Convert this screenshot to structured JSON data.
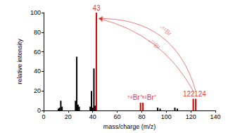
{
  "chart_data": {
    "type": "bar",
    "x_label": "mass/charge (m/z)",
    "y_label": "relative intensity",
    "x": [
      12,
      13,
      14,
      15,
      26,
      27,
      28,
      29,
      38,
      39,
      40,
      41,
      42,
      43,
      79,
      81,
      93,
      95,
      107,
      109,
      122,
      124
    ],
    "values": [
      2,
      3,
      10,
      4,
      10,
      55,
      6,
      4,
      4,
      20,
      3,
      43,
      5,
      100,
      8,
      8,
      3,
      2,
      3,
      2,
      12,
      12
    ],
    "colors": [
      "#000000",
      "#000000",
      "#000000",
      "#000000",
      "#000000",
      "#000000",
      "#000000",
      "#000000",
      "#000000",
      "#000000",
      "#000000",
      "#000000",
      "#000000",
      "#d40000",
      "#d40000",
      "#d40000",
      "#000000",
      "#000000",
      "#000000",
      "#000000",
      "#d40000",
      "#d40000"
    ],
    "xlim": [
      0,
      140
    ],
    "xticks": [
      0,
      20,
      40,
      60,
      80,
      100,
      120,
      140
    ],
    "ylim": [
      0,
      100
    ],
    "yticks": [
      0,
      20,
      40,
      60,
      80,
      100
    ],
    "grid": false,
    "annotations": [
      {
        "text": "43",
        "x": 43
      },
      {
        "text": "⁷⁹Br⁺",
        "x": 79
      },
      {
        "text": "⁸¹Br⁺",
        "x": 81
      },
      {
        "text": "122",
        "x": 122
      },
      {
        "text": "124",
        "x": 124
      }
    ],
    "arrows": [
      {
        "from": 124,
        "to": 43,
        "label": "-⁸¹Br"
      },
      {
        "from": 122,
        "to": 43,
        "label": "-⁷⁹Br"
      }
    ]
  }
}
